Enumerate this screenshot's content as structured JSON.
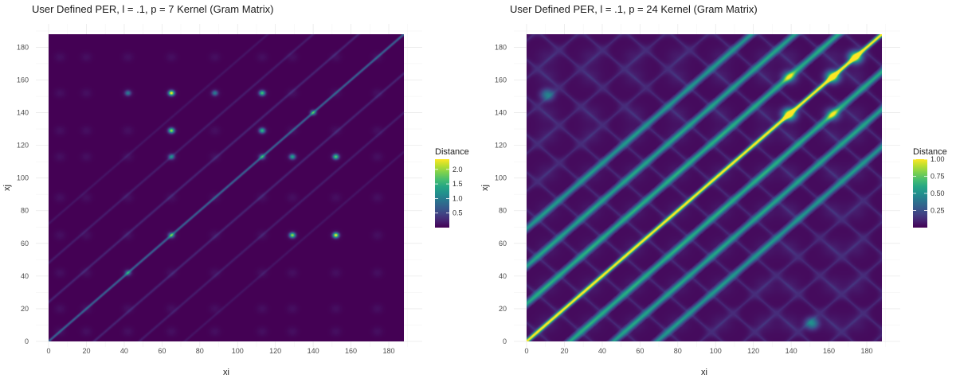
{
  "chart_data": [
    {
      "type": "heatmap",
      "title": "User Defined PER, l = .1, p = 7 Kernel (Gram Matrix)",
      "xlabel": "xi",
      "ylabel": "xj",
      "xlim": [
        0,
        188
      ],
      "ylim": [
        0,
        188
      ],
      "x_ticks": [
        0,
        20,
        40,
        60,
        80,
        100,
        120,
        140,
        160,
        180
      ],
      "y_ticks": [
        0,
        20,
        40,
        60,
        80,
        100,
        120,
        140,
        160,
        180
      ],
      "grid": true,
      "legend": {
        "title": "Distance",
        "position": "right",
        "ticks": [
          0.5,
          1.0,
          1.5,
          2.0
        ],
        "tick_labels": [
          "0.5",
          "1.0",
          "1.5",
          "2.0"
        ],
        "min": 0.0,
        "max": 2.35
      },
      "colormap": "viridis",
      "background_value": 0.0,
      "diagonal_value": 0.8,
      "off_diagonal_lines": [
        {
          "offset": 24,
          "value": 0.45
        },
        {
          "offset": -24,
          "value": 0.45
        },
        {
          "offset": 48,
          "value": 0.35
        },
        {
          "offset": -48,
          "value": 0.35
        },
        {
          "offset": 72,
          "value": 0.25
        },
        {
          "offset": -72,
          "value": 0.25
        }
      ],
      "block_centers": [
        6,
        20,
        42,
        65,
        88,
        113,
        129,
        152,
        174
      ],
      "hotspots": [
        {
          "x": 65,
          "y": 152,
          "value": 2.35
        },
        {
          "x": 152,
          "y": 65,
          "value": 2.3
        },
        {
          "x": 113,
          "y": 152,
          "value": 1.6
        },
        {
          "x": 152,
          "y": 113,
          "value": 1.7
        },
        {
          "x": 65,
          "y": 129,
          "value": 2.0
        },
        {
          "x": 129,
          "y": 65,
          "value": 2.0
        },
        {
          "x": 113,
          "y": 129,
          "value": 1.5
        },
        {
          "x": 129,
          "y": 113,
          "value": 1.3
        },
        {
          "x": 42,
          "y": 152,
          "value": 0.9
        },
        {
          "x": 88,
          "y": 152,
          "value": 0.9
        },
        {
          "x": 65,
          "y": 113,
          "value": 1.0
        },
        {
          "x": 65,
          "y": 65,
          "value": 1.2
        },
        {
          "x": 140,
          "y": 140,
          "value": 1.1
        },
        {
          "x": 113,
          "y": 113,
          "value": 0.9
        },
        {
          "x": 42,
          "y": 42,
          "value": 0.8
        }
      ]
    },
    {
      "type": "heatmap",
      "title": "User Defined PER, l = .1, p = 24 Kernel (Gram Matrix)",
      "xlabel": "xi",
      "ylabel": "xj",
      "xlim": [
        0,
        188
      ],
      "ylim": [
        0,
        188
      ],
      "x_ticks": [
        0,
        20,
        40,
        60,
        80,
        100,
        120,
        140,
        160,
        180
      ],
      "y_ticks": [
        0,
        20,
        40,
        60,
        80,
        100,
        120,
        140,
        160,
        180
      ],
      "grid": true,
      "legend": {
        "title": "Distance",
        "position": "right",
        "ticks": [
          0.25,
          0.5,
          0.75,
          1.0
        ],
        "tick_labels": [
          "0.25",
          "0.50",
          "0.75",
          "1.00"
        ],
        "min": 0.0,
        "max": 1.0
      },
      "colormap": "viridis",
      "background_value": 0.03,
      "diagonal_value": 1.0,
      "off_diagonal_lines": [
        {
          "offset": 23,
          "value": 0.55
        },
        {
          "offset": -23,
          "value": 0.55
        },
        {
          "offset": 46,
          "value": 0.5
        },
        {
          "offset": -46,
          "value": 0.5
        },
        {
          "offset": 69,
          "value": 0.45
        },
        {
          "offset": -69,
          "value": 0.45
        }
      ],
      "block_centers": [
        11,
        34,
        57,
        80,
        103,
        126,
        139,
        162,
        174
      ],
      "hotspots": [
        {
          "x": 139,
          "y": 139,
          "value": 0.9
        },
        {
          "x": 162,
          "y": 162,
          "value": 0.85
        },
        {
          "x": 174,
          "y": 174,
          "value": 0.85
        },
        {
          "x": 139,
          "y": 162,
          "value": 0.45
        },
        {
          "x": 162,
          "y": 139,
          "value": 0.45
        },
        {
          "x": 11,
          "y": 151,
          "value": 0.4
        },
        {
          "x": 151,
          "y": 11,
          "value": 0.45
        }
      ]
    }
  ]
}
